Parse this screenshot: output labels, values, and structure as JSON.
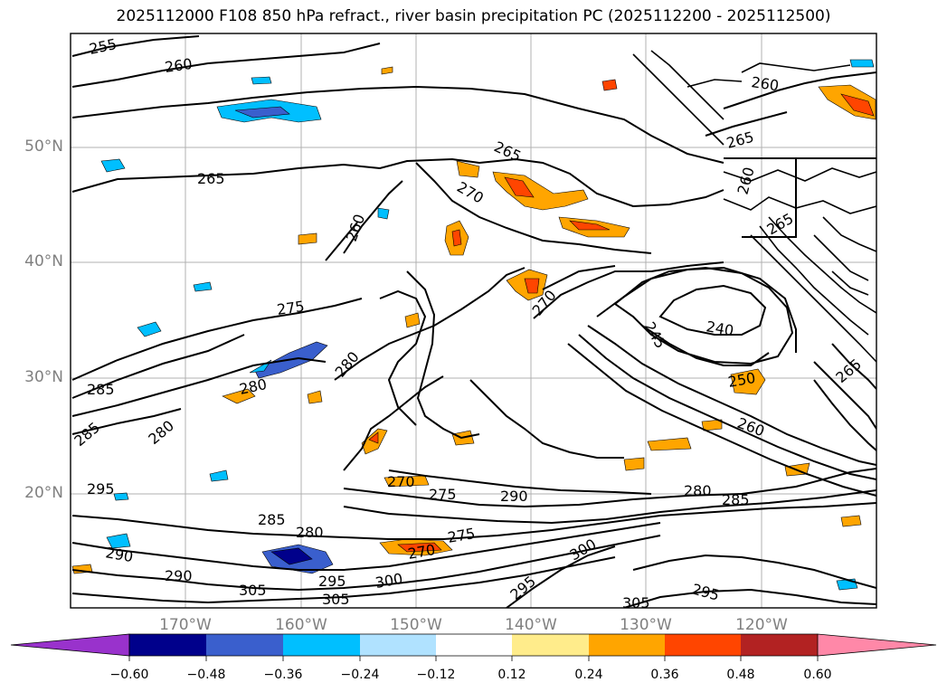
{
  "title": "2025112000 F108 850 hPa refract., river basin precipitation PC (2025112200 - 2025112500)",
  "lat_labels": [
    "50°N",
    "40°N",
    "30°N",
    "20°N"
  ],
  "lon_labels": [
    "170°W",
    "160°W",
    "150°W",
    "140°W",
    "130°W",
    "120°W"
  ],
  "contour_labels": [
    {
      "text": "255"
    },
    {
      "text": "260"
    },
    {
      "text": "260"
    },
    {
      "text": "265"
    },
    {
      "text": "265"
    },
    {
      "text": "265"
    },
    {
      "text": "270"
    },
    {
      "text": "260"
    },
    {
      "text": "275"
    },
    {
      "text": "280"
    },
    {
      "text": "270"
    },
    {
      "text": "245"
    },
    {
      "text": "240"
    },
    {
      "text": "250"
    },
    {
      "text": "260"
    },
    {
      "text": "285"
    },
    {
      "text": "280"
    },
    {
      "text": "285"
    },
    {
      "text": "280"
    },
    {
      "text": "295"
    },
    {
      "text": "270"
    },
    {
      "text": "275"
    },
    {
      "text": "290"
    },
    {
      "text": "280"
    },
    {
      "text": "285"
    },
    {
      "text": "285"
    },
    {
      "text": "280"
    },
    {
      "text": "290"
    },
    {
      "text": "290"
    },
    {
      "text": "295"
    },
    {
      "text": "270"
    },
    {
      "text": "275"
    },
    {
      "text": "300"
    },
    {
      "text": "305"
    },
    {
      "text": "305"
    },
    {
      "text": "300"
    },
    {
      "text": "295"
    },
    {
      "text": "305"
    },
    {
      "text": "295"
    },
    {
      "text": "265"
    },
    {
      "text": "260"
    },
    {
      "text": "265"
    }
  ],
  "colorbar": {
    "ticks": [
      "−0.60",
      "−0.48",
      "−0.36",
      "−0.24",
      "−0.12",
      "0.12",
      "0.24",
      "0.36",
      "0.48",
      "0.60"
    ],
    "colors": [
      "#9932cc",
      "#00008b",
      "#3a5fcd",
      "#00bfff",
      "#b0e2ff",
      "#ffffff",
      "#ffec8b",
      "#ffa500",
      "#ff4500",
      "#b22222",
      "#ff88a8",
      "#ff88a8"
    ]
  },
  "fill_colors": {
    "light_blue": "#b0e2ff",
    "sky_blue": "#00bfff",
    "blue": "#3a5fcd",
    "navy": "#00008b",
    "yellow": "#ffec8b",
    "orange": "#ffa500",
    "red_orange": "#ff4500",
    "dark_red": "#b22222"
  }
}
